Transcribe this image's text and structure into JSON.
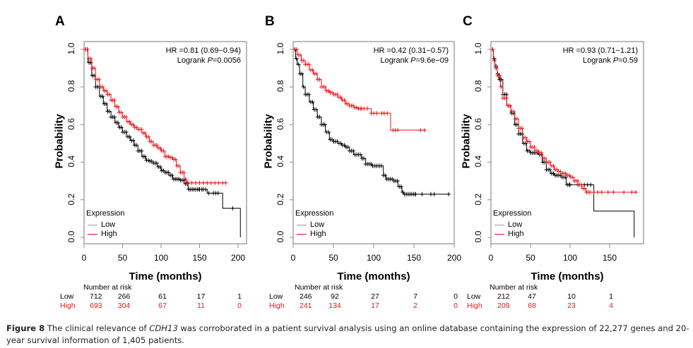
{
  "figure": {
    "caption_label": "Figure 8",
    "caption_pre": " The clinical relevance of ",
    "caption_gene": "CDH13",
    "caption_post": " was corroborated in a patient survival analysis using an online database containing the expression of 22,277 genes and 20-year survival information of 1,405 patients."
  },
  "colors": {
    "low": "#000000",
    "high": "#e8161b",
    "frame": "#8c8c8c"
  },
  "chart_data": [
    {
      "panel": "A",
      "type": "line",
      "title": "",
      "xlabel": "Time (months)",
      "ylabel": "Probability",
      "xlim": [
        0,
        205
      ],
      "ylim": [
        0,
        1
      ],
      "x_ticks": [
        "0",
        "50",
        "100",
        "150",
        "200"
      ],
      "y_ticks": [
        "0.0",
        "0.2",
        "0.4",
        "0.6",
        "0.8",
        "1.0"
      ],
      "annotation": {
        "hr": "HR =0.81 (0.69−0.94)",
        "logrank_prefix": "Logrank ",
        "logrank_p": "P",
        "logrank_value": "=0.0056"
      },
      "legend": {
        "title": "Expression",
        "items": [
          "Low",
          "High"
        ],
        "position": "bottom-left"
      },
      "risk_table": {
        "title": "Number at risk",
        "times": [
          0,
          50,
          100,
          150,
          200
        ],
        "rows": [
          {
            "label": "Low",
            "values": [
              "712",
              "266",
              "61",
              "17",
              "1"
            ]
          },
          {
            "label": "High",
            "values": [
              "693",
              "304",
              "67",
              "11",
              "0"
            ]
          }
        ]
      },
      "series": [
        {
          "name": "Low",
          "points": [
            [
              0,
              1.0
            ],
            [
              5,
              0.93
            ],
            [
              10,
              0.86
            ],
            [
              15,
              0.8
            ],
            [
              20,
              0.75
            ],
            [
              25,
              0.71
            ],
            [
              30,
              0.67
            ],
            [
              35,
              0.64
            ],
            [
              40,
              0.61
            ],
            [
              45,
              0.585
            ],
            [
              50,
              0.56
            ],
            [
              55,
              0.535
            ],
            [
              60,
              0.515
            ],
            [
              65,
              0.49
            ],
            [
              70,
              0.46
            ],
            [
              75,
              0.43
            ],
            [
              80,
              0.41
            ],
            [
              85,
              0.405
            ],
            [
              90,
              0.395
            ],
            [
              95,
              0.375
            ],
            [
              100,
              0.355
            ],
            [
              105,
              0.345
            ],
            [
              110,
              0.33
            ],
            [
              115,
              0.31
            ],
            [
              125,
              0.305
            ],
            [
              130,
              0.285
            ],
            [
              135,
              0.255
            ],
            [
              160,
              0.235
            ],
            [
              180,
              0.155
            ],
            [
              203,
              0.155
            ],
            [
              203,
              0.0
            ]
          ],
          "censors": [
            150,
            153,
            155,
            158,
            162,
            168,
            171,
            174,
            193
          ]
        },
        {
          "name": "High",
          "points": [
            [
              0,
              1.0
            ],
            [
              5,
              0.95
            ],
            [
              10,
              0.9
            ],
            [
              15,
              0.84
            ],
            [
              20,
              0.8
            ],
            [
              25,
              0.78
            ],
            [
              30,
              0.76
            ],
            [
              35,
              0.73
            ],
            [
              40,
              0.695
            ],
            [
              45,
              0.665
            ],
            [
              50,
              0.64
            ],
            [
              55,
              0.615
            ],
            [
              60,
              0.6
            ],
            [
              65,
              0.585
            ],
            [
              70,
              0.575
            ],
            [
              75,
              0.555
            ],
            [
              80,
              0.535
            ],
            [
              85,
              0.51
            ],
            [
              90,
              0.49
            ],
            [
              95,
              0.475
            ],
            [
              100,
              0.46
            ],
            [
              105,
              0.43
            ],
            [
              110,
              0.425
            ],
            [
              115,
              0.415
            ],
            [
              120,
              0.38
            ],
            [
              125,
              0.345
            ],
            [
              130,
              0.31
            ],
            [
              133,
              0.29
            ],
            [
              185,
              0.29
            ]
          ],
          "censors": [
            135,
            140,
            145,
            150,
            155,
            160,
            165,
            170,
            175,
            180,
            184
          ]
        }
      ]
    },
    {
      "panel": "B",
      "type": "line",
      "title": "",
      "xlabel": "Time (months)",
      "ylabel": "Probability",
      "xlim": [
        0,
        200
      ],
      "ylim": [
        0,
        1
      ],
      "x_ticks": [
        "0",
        "50",
        "100",
        "150",
        "200"
      ],
      "y_ticks": [
        "0.0",
        "0.2",
        "0.4",
        "0.6",
        "0.8",
        "1.0"
      ],
      "annotation": {
        "hr": "HR =0.42 (0.31−0.57)",
        "logrank_prefix": "Logrank ",
        "logrank_p": "P",
        "logrank_value": "=9.6e−09"
      },
      "legend": {
        "title": "Expression",
        "items": [
          "Low",
          "High"
        ],
        "position": "bottom-left"
      },
      "risk_table": {
        "title": "Number at risk",
        "times": [
          0,
          50,
          100,
          150,
          200
        ],
        "rows": [
          {
            "label": "Low",
            "values": [
              "246",
              "92",
              "27",
              "7",
              "0"
            ]
          },
          {
            "label": "High",
            "values": [
              "241",
              "134",
              "17",
              "2",
              "0"
            ]
          }
        ]
      },
      "series": [
        {
          "name": "Low",
          "points": [
            [
              0,
              1.0
            ],
            [
              3,
              0.95
            ],
            [
              5,
              0.92
            ],
            [
              8,
              0.87
            ],
            [
              12,
              0.8
            ],
            [
              15,
              0.76
            ],
            [
              20,
              0.72
            ],
            [
              25,
              0.68
            ],
            [
              30,
              0.64
            ],
            [
              35,
              0.6
            ],
            [
              40,
              0.56
            ],
            [
              45,
              0.52
            ],
            [
              50,
              0.51
            ],
            [
              55,
              0.5
            ],
            [
              60,
              0.49
            ],
            [
              65,
              0.48
            ],
            [
              70,
              0.46
            ],
            [
              75,
              0.44
            ],
            [
              85,
              0.42
            ],
            [
              90,
              0.39
            ],
            [
              98,
              0.38
            ],
            [
              108,
              0.38
            ],
            [
              112,
              0.33
            ],
            [
              115,
              0.31
            ],
            [
              125,
              0.3
            ],
            [
              130,
              0.27
            ],
            [
              135,
              0.24
            ],
            [
              137,
              0.23
            ],
            [
              193,
              0.23
            ]
          ],
          "censors": [
            152,
            160,
            171,
            175,
            193
          ]
        },
        {
          "name": "High",
          "points": [
            [
              0,
              1.0
            ],
            [
              5,
              0.97
            ],
            [
              10,
              0.94
            ],
            [
              15,
              0.92
            ],
            [
              20,
              0.89
            ],
            [
              25,
              0.87
            ],
            [
              30,
              0.84
            ],
            [
              35,
              0.8
            ],
            [
              40,
              0.78
            ],
            [
              45,
              0.77
            ],
            [
              50,
              0.76
            ],
            [
              55,
              0.745
            ],
            [
              60,
              0.73
            ],
            [
              65,
              0.71
            ],
            [
              70,
              0.7
            ],
            [
              75,
              0.69
            ],
            [
              80,
              0.685
            ],
            [
              95,
              0.685
            ],
            [
              97,
              0.66
            ],
            [
              120,
              0.66
            ],
            [
              121,
              0.57
            ],
            [
              165,
              0.57
            ]
          ],
          "censors": [
            85,
            88,
            92,
            97,
            100,
            104,
            110,
            113,
            117,
            124,
            127,
            130,
            158,
            163
          ]
        }
      ]
    },
    {
      "panel": "C",
      "type": "line",
      "title": "",
      "xlabel": "Time (months)",
      "ylabel": "Probability",
      "xlim": [
        0,
        192
      ],
      "ylim": [
        0,
        1
      ],
      "x_ticks": [
        "0",
        "50",
        "100",
        "150"
      ],
      "y_ticks": [
        "0.0",
        "0.2",
        "0.4",
        "0.6",
        "0.8",
        "1.0"
      ],
      "annotation": {
        "hr": "HR =0.93 (0.71−1.21)",
        "logrank_prefix": "Logrank ",
        "logrank_p": "P",
        "logrank_value": "=0.59"
      },
      "legend": {
        "title": "Expression",
        "items": [
          "Low",
          "High"
        ],
        "position": "bottom-left"
      },
      "risk_table": {
        "title": "Number at risk",
        "times": [
          0,
          50,
          100,
          150
        ],
        "rows": [
          {
            "label": "Low",
            "values": [
              "212",
              "47",
              "10",
              "1"
            ]
          },
          {
            "label": "High",
            "values": [
              "209",
              "68",
              "23",
              "4"
            ]
          }
        ]
      },
      "series": [
        {
          "name": "Low",
          "points": [
            [
              0,
              1.0
            ],
            [
              3,
              0.95
            ],
            [
              5,
              0.91
            ],
            [
              8,
              0.87
            ],
            [
              10,
              0.84
            ],
            [
              15,
              0.76
            ],
            [
              20,
              0.7
            ],
            [
              25,
              0.66
            ],
            [
              30,
              0.6
            ],
            [
              35,
              0.55
            ],
            [
              40,
              0.5
            ],
            [
              45,
              0.46
            ],
            [
              50,
              0.45
            ],
            [
              55,
              0.45
            ],
            [
              60,
              0.44
            ],
            [
              65,
              0.4
            ],
            [
              70,
              0.36
            ],
            [
              75,
              0.34
            ],
            [
              80,
              0.33
            ],
            [
              90,
              0.32
            ],
            [
              95,
              0.28
            ],
            [
              130,
              0.28
            ],
            [
              130,
              0.14
            ],
            [
              181,
              0.14
            ],
            [
              181,
              0.0
            ]
          ],
          "censors": [
            100,
            110,
            118,
            122,
            126
          ]
        },
        {
          "name": "High",
          "points": [
            [
              0,
              1.0
            ],
            [
              3,
              0.94
            ],
            [
              5,
              0.9
            ],
            [
              8,
              0.86
            ],
            [
              12,
              0.8
            ],
            [
              15,
              0.74
            ],
            [
              20,
              0.7
            ],
            [
              25,
              0.67
            ],
            [
              30,
              0.63
            ],
            [
              35,
              0.58
            ],
            [
              40,
              0.53
            ],
            [
              45,
              0.51
            ],
            [
              50,
              0.48
            ],
            [
              55,
              0.46
            ],
            [
              60,
              0.45
            ],
            [
              65,
              0.42
            ],
            [
              70,
              0.4
            ],
            [
              75,
              0.38
            ],
            [
              80,
              0.36
            ],
            [
              85,
              0.35
            ],
            [
              90,
              0.34
            ],
            [
              95,
              0.33
            ],
            [
              100,
              0.32
            ],
            [
              105,
              0.3
            ],
            [
              110,
              0.28
            ],
            [
              115,
              0.26
            ],
            [
              120,
              0.24
            ],
            [
              185,
              0.24
            ]
          ],
          "censors": [
            125,
            130,
            135,
            140,
            148,
            155,
            168,
            178,
            183
          ]
        }
      ]
    }
  ]
}
